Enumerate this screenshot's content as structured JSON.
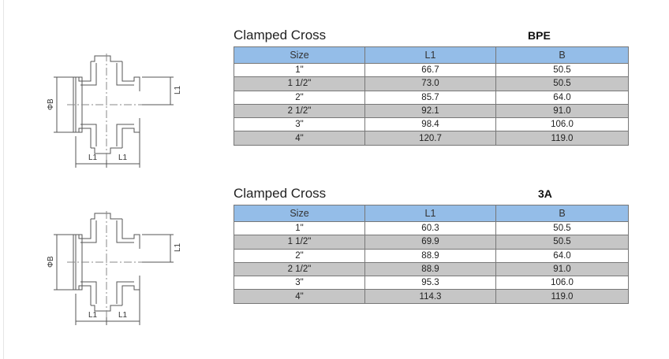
{
  "tables": [
    {
      "title": "Clamped Cross",
      "standard": "BPE",
      "columns": [
        "Size",
        "L1",
        "B"
      ],
      "rows": [
        [
          "1\"",
          "66.7",
          "50.5"
        ],
        [
          "1 1/2\"",
          "73.0",
          "50.5"
        ],
        [
          "2\"",
          "85.7",
          "64.0"
        ],
        [
          "2 1/2\"",
          "92.1",
          "91.0"
        ],
        [
          "3\"",
          "98.4",
          "106.0"
        ],
        [
          "4\"",
          "120.7",
          "119.0"
        ]
      ]
    },
    {
      "title": "Clamped Cross",
      "standard": "3A",
      "columns": [
        "Size",
        "L1",
        "B"
      ],
      "rows": [
        [
          "1\"",
          "60.3",
          "50.5"
        ],
        [
          "1 1/2\"",
          "69.9",
          "50.5"
        ],
        [
          "2\"",
          "88.9",
          "64.0"
        ],
        [
          "2 1/2\"",
          "88.9",
          "91.0"
        ],
        [
          "3\"",
          "95.3",
          "106.0"
        ],
        [
          "4\"",
          "114.3",
          "119.0"
        ]
      ]
    }
  ],
  "drawing_labels": {
    "diameter": "ΦB",
    "length": "L1"
  }
}
